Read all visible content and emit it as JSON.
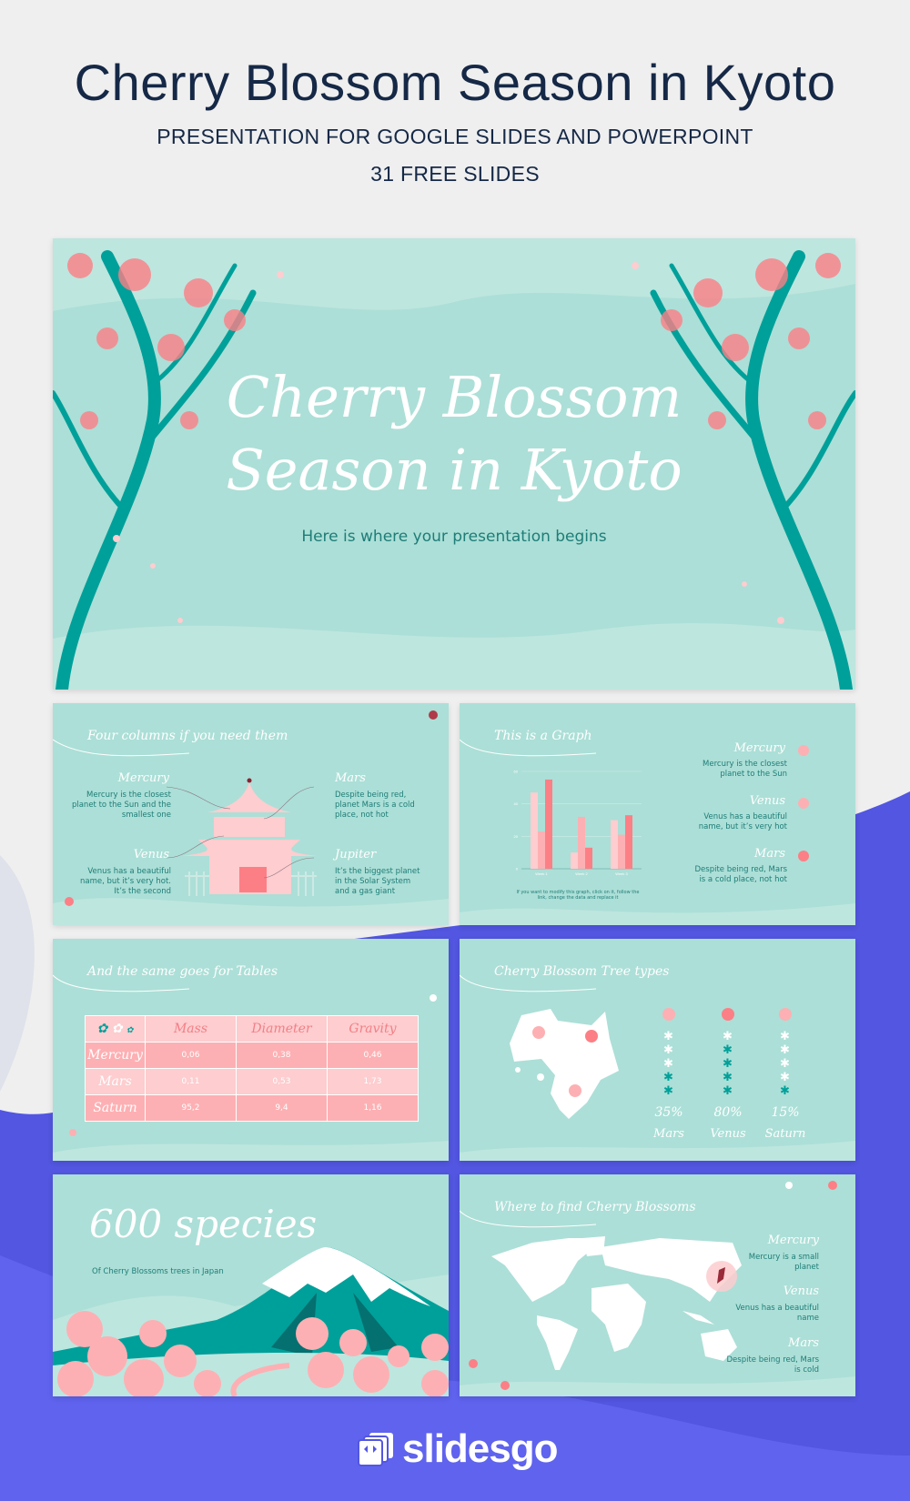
{
  "header": {
    "title": "Cherry Blossom Season in Kyoto",
    "subtitle": "PRESENTATION FOR GOOGLE SLIDES AND POWERPOINT",
    "count": "31 FREE SLIDES"
  },
  "colors": {
    "background": "#efefef",
    "accent_blue": "#5256e0",
    "slide_bg": "#acdfd7",
    "teal": "#00a09a",
    "pink": "#fd7f86",
    "text_dark": "#152846"
  },
  "hero": {
    "title_line1": "Cherry Blossom",
    "title_line2": "Season in Kyoto",
    "subtitle": "Here is where your presentation begins"
  },
  "slide_columns": {
    "title": "Four columns if you need them",
    "items": [
      {
        "name": "Mercury",
        "text": "Mercury is the closest planet to the Sun and the smallest one"
      },
      {
        "name": "Mars",
        "text": "Despite being red, planet Mars is a cold place, not hot"
      },
      {
        "name": "Venus",
        "text": "Venus has a beautiful name, but it’s very hot. It’s the second"
      },
      {
        "name": "Jupiter",
        "text": "It’s the biggest planet in the Solar System and a gas giant"
      }
    ]
  },
  "slide_graph": {
    "title": "This is a Graph",
    "note": "If you want to modify this graph, click on it, follow the link, change the data and replace it",
    "items": [
      {
        "name": "Mercury",
        "text": "Mercury is the closest planet to the Sun"
      },
      {
        "name": "Venus",
        "text": "Venus has a beautiful name, but it’s very hot"
      },
      {
        "name": "Mars",
        "text": "Despite being red, Mars is a cold place, not hot"
      }
    ]
  },
  "chart_data": {
    "type": "bar",
    "categories": [
      "Week 1",
      "Week 2",
      "Week 3"
    ],
    "ylim": [
      0,
      60
    ],
    "yticks": [
      0,
      20,
      40,
      60
    ],
    "grid": true,
    "series": [
      {
        "values": [
          47,
          10,
          30
        ],
        "color": "#fdcdcf"
      },
      {
        "values": [
          23,
          32,
          21
        ],
        "color": "#fdb0b3"
      },
      {
        "values": [
          55,
          13,
          33
        ],
        "color": "#fd7f86"
      }
    ]
  },
  "slide_table": {
    "title": "And the same goes for Tables",
    "columns": [
      "Mass",
      "Diameter",
      "Gravity"
    ],
    "rows": [
      {
        "label": "Mercury",
        "values": [
          "0,06",
          "0,38",
          "0,46"
        ]
      },
      {
        "label": "Mars",
        "values": [
          "0,11",
          "0,53",
          "1,73"
        ]
      },
      {
        "label": "Saturn",
        "values": [
          "95,2",
          "9,4",
          "1,16"
        ]
      }
    ]
  },
  "slide_types": {
    "title": "Cherry Blossom Tree types",
    "items": [
      {
        "percent": "35%",
        "label": "Mars",
        "level": 0.35
      },
      {
        "percent": "80%",
        "label": "Venus",
        "level": 0.8
      },
      {
        "percent": "15%",
        "label": "Saturn",
        "level": 0.15
      }
    ]
  },
  "slide_species": {
    "title": "600 species",
    "subtitle": "Of Cherry Blossoms trees in Japan"
  },
  "slide_map": {
    "title": "Where to find Cherry Blossoms",
    "items": [
      {
        "name": "Mercury",
        "text": "Mercury is a small planet"
      },
      {
        "name": "Venus",
        "text": "Venus has a beautiful name"
      },
      {
        "name": "Mars",
        "text": "Despite being red, Mars is cold"
      }
    ]
  },
  "footer": {
    "brand": "slidesgo"
  }
}
